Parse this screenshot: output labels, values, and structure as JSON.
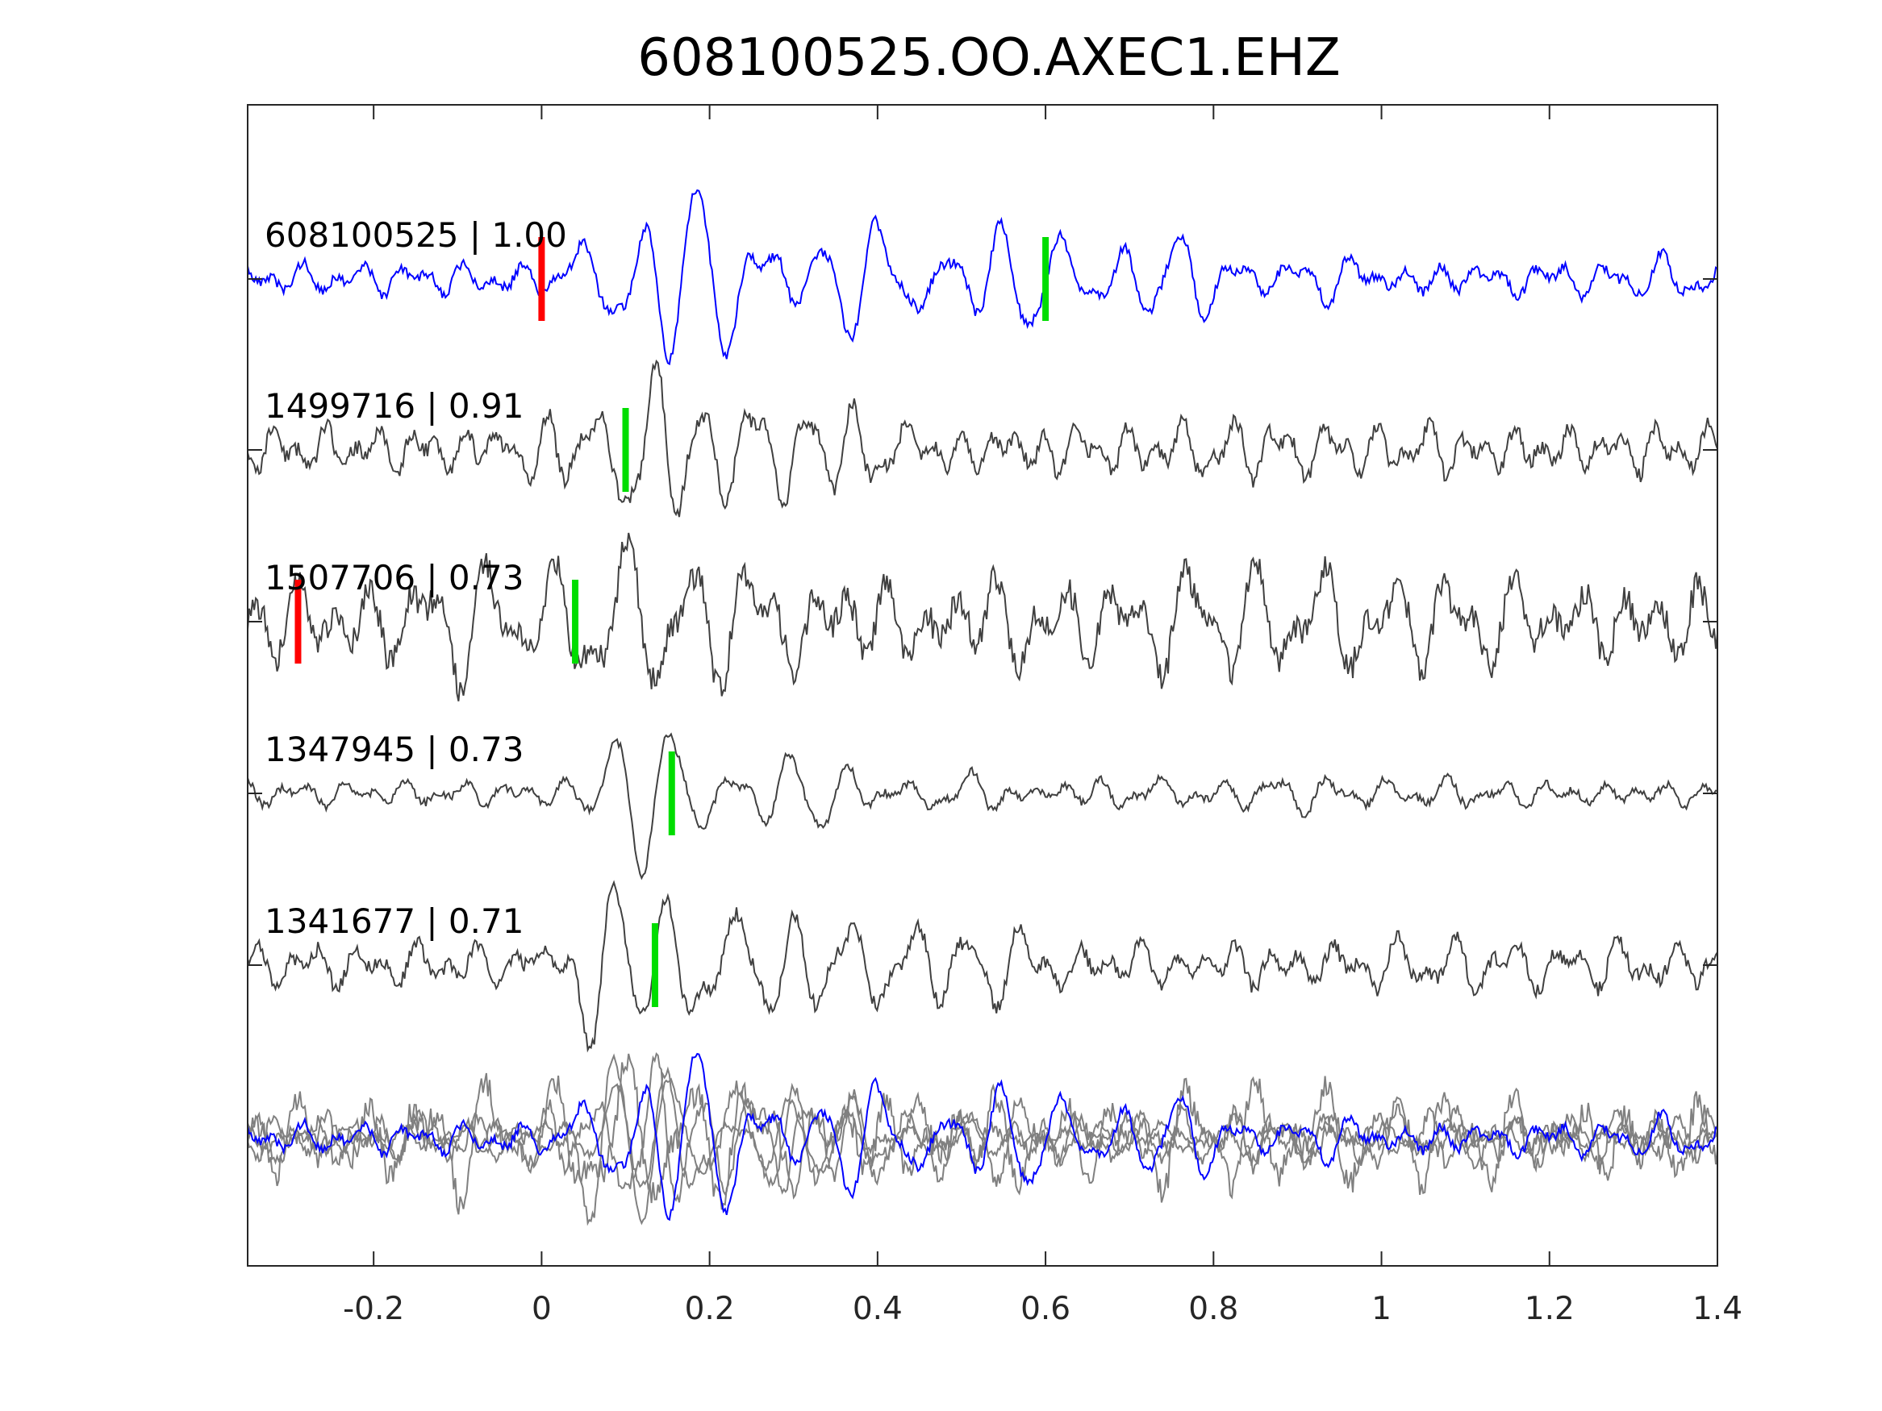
{
  "chart_data": {
    "type": "line",
    "title": "608100525.OO.AXEC1.EHZ",
    "xlabel": "",
    "ylabel": "",
    "xlim": [
      -0.35,
      1.4
    ],
    "xticks": [
      -0.2,
      0,
      0.2,
      0.4,
      0.6,
      0.8,
      1,
      1.2,
      1.4
    ],
    "xtick_labels": [
      "-0.2",
      "0",
      "0.2",
      "0.4",
      "0.6",
      "0.8",
      "1",
      "1.2",
      "1.4"
    ],
    "grid": false,
    "colors": {
      "template": "#0000ff",
      "match": "#404040",
      "overlay_match": "#808080",
      "p_pick": "#ff0000",
      "s_pick": "#00dd00",
      "axes": "#262626"
    },
    "traces": [
      {
        "label": "608100525 | 1.00",
        "event_id": "608100525",
        "correlation": 1.0,
        "role": "template",
        "p_pick": 0.0,
        "s_pick": 0.6,
        "onset": 0.02,
        "env_peak": 0.1,
        "env_decay": 0.4,
        "amplitude": 1.0,
        "noise": 0.16,
        "freq": 14,
        "seed": 3
      },
      {
        "label": "1499716 | 0.91",
        "event_id": "1499716",
        "correlation": 0.91,
        "role": "match",
        "p_pick": null,
        "s_pick": 0.1,
        "onset": -0.1,
        "env_peak": 0.1,
        "env_decay": 0.22,
        "amplitude": 1.0,
        "noise": 0.32,
        "freq": 16,
        "seed": 11
      },
      {
        "label": "1507706 | 0.73",
        "event_id": "1507706",
        "correlation": 0.73,
        "role": "match",
        "p_pick": -0.29,
        "s_pick": 0.04,
        "onset": -0.35,
        "env_peak": 0.05,
        "env_decay": 0.9,
        "amplitude": 0.55,
        "noise": 0.55,
        "freq": 12,
        "seed": 23
      },
      {
        "label": "1347945 | 0.73",
        "event_id": "1347945",
        "correlation": 0.73,
        "role": "match",
        "p_pick": null,
        "s_pick": 0.155,
        "onset": 0.03,
        "env_peak": 0.08,
        "env_decay": 0.18,
        "amplitude": 0.85,
        "noise": 0.14,
        "freq": 14,
        "seed": 37
      },
      {
        "label": "1341677 | 0.71",
        "event_id": "1341677",
        "correlation": 0.71,
        "role": "match",
        "p_pick": null,
        "s_pick": 0.135,
        "onset": 0.0,
        "env_peak": 0.07,
        "env_decay": 0.17,
        "amplitude": 0.85,
        "noise": 0.16,
        "freq": 14,
        "seed": 51
      }
    ],
    "overlay": {
      "description": "all traces stacked",
      "role": "overlay"
    }
  }
}
